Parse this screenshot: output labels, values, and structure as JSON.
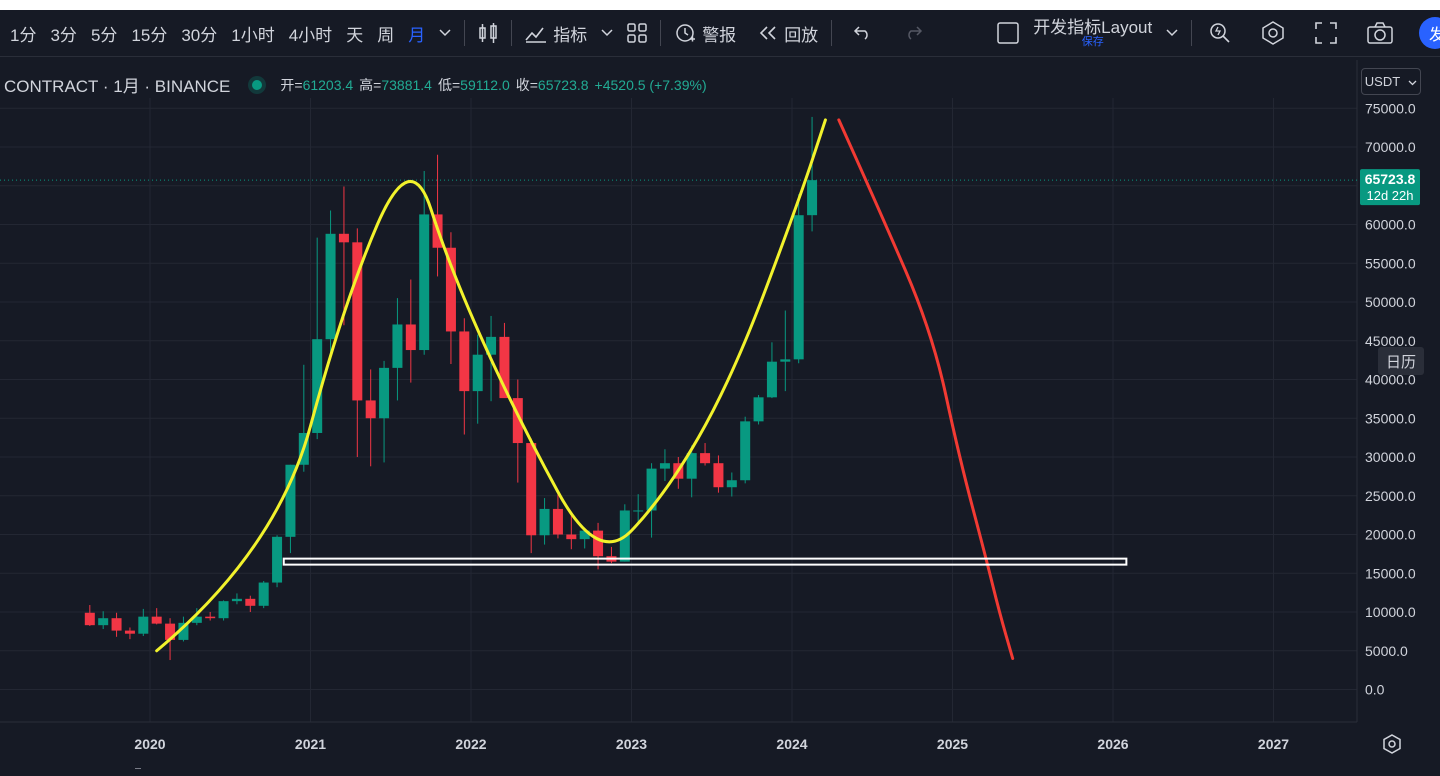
{
  "toolbar": {
    "intervals": [
      "1分",
      "3分",
      "5分",
      "15分",
      "30分",
      "1小时",
      "4小时",
      "天",
      "周",
      "月"
    ],
    "active_interval": "月",
    "indicators_label": "指标",
    "alert_label": "警报",
    "replay_label": "回放",
    "layout_name": "开发指标Layout",
    "layout_save_label": "保存",
    "publish_button_label": "发",
    "icons": [
      "chevron-down-icon",
      "candles-icon",
      "indicators-icon",
      "templates-icon",
      "alert-icon",
      "replay-icon",
      "undo-icon",
      "redo-icon",
      "layout-square-icon",
      "quick-search-icon",
      "settings-icon",
      "fullscreen-icon",
      "snapshot-icon"
    ]
  },
  "legend": {
    "symbol": "CONTRACT · 1月 · BINANCE",
    "open_label": "开=",
    "open": "61203.4",
    "high_label": "高=",
    "high": "73881.4",
    "low_label": "低=",
    "low": "59112.0",
    "close_label": "收=",
    "close": "65723.8",
    "change": "+4520.5 (+7.39%)"
  },
  "price_axis": {
    "currency": "USDT",
    "last_price_label": "65723.8",
    "countdown_label": "12d 22h",
    "calendar_button_label": "日历"
  },
  "colors": {
    "background": "#161a25",
    "up": "#089981",
    "down": "#f23645",
    "grid": "#232733",
    "peak_line": "#f2f22c",
    "projection_line": "#f23a33",
    "support_line": "#ffffff",
    "accent": "#2962ff"
  },
  "chart_data": {
    "type": "candlestick",
    "title": "",
    "xlabel": "",
    "ylabel": "",
    "timeframe": "monthly",
    "ylim": [
      0,
      75000
    ],
    "yticks": [
      0,
      5000,
      10000,
      15000,
      20000,
      25000,
      30000,
      35000,
      40000,
      45000,
      50000,
      55000,
      60000,
      65000,
      70000,
      75000
    ],
    "xticks": [
      "2020",
      "2021",
      "2022",
      "2023",
      "2024",
      "2025",
      "2026",
      "2027"
    ],
    "grid": true,
    "candles": [
      {
        "t": "2019-08",
        "o": 9900,
        "h": 10900,
        "l": 8200,
        "c": 8300
      },
      {
        "t": "2019-09",
        "o": 8300,
        "h": 10100,
        "l": 7800,
        "c": 9200
      },
      {
        "t": "2019-10",
        "o": 9200,
        "h": 9900,
        "l": 6800,
        "c": 7600
      },
      {
        "t": "2019-11",
        "o": 7600,
        "h": 8000,
        "l": 6500,
        "c": 7200
      },
      {
        "t": "2019-12",
        "o": 7200,
        "h": 10400,
        "l": 6900,
        "c": 9400
      },
      {
        "t": "2020-01",
        "o": 9400,
        "h": 10500,
        "l": 8400,
        "c": 8500
      },
      {
        "t": "2020-02",
        "o": 8500,
        "h": 9200,
        "l": 3800,
        "c": 6400
      },
      {
        "t": "2020-03",
        "o": 6400,
        "h": 9400,
        "l": 6200,
        "c": 8600
      },
      {
        "t": "2020-04",
        "o": 8600,
        "h": 10500,
        "l": 8300,
        "c": 9400
      },
      {
        "t": "2020-05",
        "o": 9400,
        "h": 10000,
        "l": 8900,
        "c": 9200
      },
      {
        "t": "2020-06",
        "o": 9200,
        "h": 11500,
        "l": 8900,
        "c": 11400
      },
      {
        "t": "2020-07",
        "o": 11400,
        "h": 12400,
        "l": 11000,
        "c": 11700
      },
      {
        "t": "2020-08",
        "o": 11700,
        "h": 12100,
        "l": 10000,
        "c": 10800
      },
      {
        "t": "2020-09",
        "o": 10800,
        "h": 14000,
        "l": 10500,
        "c": 13800
      },
      {
        "t": "2020-10",
        "o": 13800,
        "h": 19900,
        "l": 13200,
        "c": 19700
      },
      {
        "t": "2020-11",
        "o": 19700,
        "h": 29000,
        "l": 17600,
        "c": 29000
      },
      {
        "t": "2020-12",
        "o": 29000,
        "h": 41900,
        "l": 28100,
        "c": 33100
      },
      {
        "t": "2021-01",
        "o": 33100,
        "h": 58300,
        "l": 32300,
        "c": 45200
      },
      {
        "t": "2021-02",
        "o": 45200,
        "h": 61800,
        "l": 43000,
        "c": 58800
      },
      {
        "t": "2021-03",
        "o": 58800,
        "h": 64900,
        "l": 47000,
        "c": 57700
      },
      {
        "t": "2021-04",
        "o": 57700,
        "h": 59500,
        "l": 30000,
        "c": 37300
      },
      {
        "t": "2021-05",
        "o": 37300,
        "h": 41300,
        "l": 28800,
        "c": 35000
      },
      {
        "t": "2021-06",
        "o": 35000,
        "h": 42400,
        "l": 29300,
        "c": 41500
      },
      {
        "t": "2021-07",
        "o": 41500,
        "h": 50500,
        "l": 37300,
        "c": 47100
      },
      {
        "t": "2021-08",
        "o": 47100,
        "h": 52900,
        "l": 39600,
        "c": 43800
      },
      {
        "t": "2021-09",
        "o": 43800,
        "h": 66900,
        "l": 43200,
        "c": 61300
      },
      {
        "t": "2021-10",
        "o": 61300,
        "h": 69000,
        "l": 53300,
        "c": 57000
      },
      {
        "t": "2021-11",
        "o": 57000,
        "h": 59000,
        "l": 42000,
        "c": 46200
      },
      {
        "t": "2021-12",
        "o": 46200,
        "h": 47900,
        "l": 32900,
        "c": 38500
      },
      {
        "t": "2022-01",
        "o": 38500,
        "h": 45800,
        "l": 34300,
        "c": 43200
      },
      {
        "t": "2022-02",
        "o": 43200,
        "h": 48200,
        "l": 37200,
        "c": 45500
      },
      {
        "t": "2022-03",
        "o": 45500,
        "h": 47300,
        "l": 37700,
        "c": 37600
      },
      {
        "t": "2022-04",
        "o": 37600,
        "h": 40000,
        "l": 26700,
        "c": 31800
      },
      {
        "t": "2022-05",
        "o": 31800,
        "h": 32400,
        "l": 17600,
        "c": 19900
      },
      {
        "t": "2022-06",
        "o": 19900,
        "h": 24700,
        "l": 18700,
        "c": 23300
      },
      {
        "t": "2022-07",
        "o": 23300,
        "h": 25200,
        "l": 19500,
        "c": 20000
      },
      {
        "t": "2022-08",
        "o": 20000,
        "h": 22800,
        "l": 18100,
        "c": 19400
      },
      {
        "t": "2022-09",
        "o": 19400,
        "h": 20500,
        "l": 18200,
        "c": 20500
      },
      {
        "t": "2022-10",
        "o": 20500,
        "h": 21500,
        "l": 15500,
        "c": 17200
      },
      {
        "t": "2022-11",
        "o": 17200,
        "h": 18400,
        "l": 16300,
        "c": 16500
      },
      {
        "t": "2022-12",
        "o": 16500,
        "h": 23900,
        "l": 16500,
        "c": 23100
      },
      {
        "t": "2023-01",
        "o": 23100,
        "h": 25200,
        "l": 21400,
        "c": 23100
      },
      {
        "t": "2023-02",
        "o": 23100,
        "h": 29200,
        "l": 19600,
        "c": 28500
      },
      {
        "t": "2023-03",
        "o": 28500,
        "h": 31000,
        "l": 26900,
        "c": 29200
      },
      {
        "t": "2023-04",
        "o": 29200,
        "h": 30000,
        "l": 25900,
        "c": 27200
      },
      {
        "t": "2023-05",
        "o": 27200,
        "h": 31500,
        "l": 24800,
        "c": 30500
      },
      {
        "t": "2023-06",
        "o": 30500,
        "h": 31800,
        "l": 28900,
        "c": 29200
      },
      {
        "t": "2023-07",
        "o": 29200,
        "h": 30200,
        "l": 25400,
        "c": 26100
      },
      {
        "t": "2023-08",
        "o": 26100,
        "h": 28000,
        "l": 24900,
        "c": 27000
      },
      {
        "t": "2023-09",
        "o": 27000,
        "h": 35200,
        "l": 26600,
        "c": 34600
      },
      {
        "t": "2023-10",
        "o": 34600,
        "h": 38000,
        "l": 34200,
        "c": 37700
      },
      {
        "t": "2023-11",
        "o": 37700,
        "h": 44800,
        "l": 37600,
        "c": 42300
      },
      {
        "t": "2023-12",
        "o": 42300,
        "h": 48900,
        "l": 38500,
        "c": 42600
      },
      {
        "t": "2024-01",
        "o": 42600,
        "h": 63900,
        "l": 42100,
        "c": 61200
      },
      {
        "t": "2024-02",
        "o": 61203.4,
        "h": 73881.4,
        "l": 59112.0,
        "c": 65723.8
      }
    ],
    "annotations": [
      {
        "type": "polyline",
        "color": "yellow",
        "points": [
          [
            "2020-01",
            5000
          ],
          [
            "2020-10",
            18000
          ],
          [
            "2021-03",
            50000
          ],
          [
            "2021-08",
            70000
          ],
          [
            "2021-11",
            54000
          ],
          [
            "2022-04",
            35000
          ],
          [
            "2022-10",
            16000
          ],
          [
            "2023-03",
            25000
          ],
          [
            "2023-08",
            40000
          ],
          [
            "2024-01",
            63000
          ],
          [
            "2024-03",
            73500
          ]
        ]
      },
      {
        "type": "polyline",
        "color": "red",
        "points": [
          [
            "2024-04",
            73500
          ],
          [
            "2024-07",
            62000
          ],
          [
            "2024-11",
            46000
          ],
          [
            "2025-01",
            30000
          ],
          [
            "2025-03",
            17000
          ],
          [
            "2025-04",
            10000
          ],
          [
            "2025-05",
            4000
          ]
        ]
      },
      {
        "type": "horizontal-box",
        "color": "white",
        "y": 16500,
        "from": "2020-11",
        "to": "2026-02"
      }
    ]
  }
}
